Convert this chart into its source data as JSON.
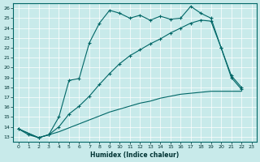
{
  "xlabel": "Humidex (Indice chaleur)",
  "bg_color": "#c8eaea",
  "line_color": "#006666",
  "grid_color": "#b0d4d4",
  "xlim": [
    -0.5,
    23.5
  ],
  "ylim": [
    12.5,
    26.5
  ],
  "xticks": [
    0,
    1,
    2,
    3,
    4,
    5,
    6,
    7,
    8,
    9,
    10,
    11,
    12,
    13,
    14,
    15,
    16,
    17,
    18,
    19,
    20,
    21,
    22,
    23
  ],
  "yticks": [
    13,
    14,
    15,
    16,
    17,
    18,
    19,
    20,
    21,
    22,
    23,
    24,
    25,
    26
  ],
  "line1_x": [
    0,
    1,
    2,
    3,
    4,
    5,
    6,
    7,
    8,
    9,
    10,
    11,
    12,
    13,
    14,
    15,
    16,
    17,
    18,
    19,
    20,
    21,
    22
  ],
  "line1_y": [
    13.8,
    13.2,
    12.9,
    13.2,
    15.0,
    18.7,
    18.9,
    22.5,
    24.5,
    25.8,
    25.5,
    25.0,
    25.3,
    24.8,
    25.2,
    24.9,
    25.0,
    26.2,
    25.5,
    25.0,
    22.0,
    19.0,
    17.8
  ],
  "line2_x": [
    0,
    2,
    3,
    4,
    5,
    6,
    7,
    8,
    9,
    10,
    11,
    12,
    13,
    14,
    15,
    16,
    17,
    18,
    19,
    20,
    21,
    22
  ],
  "line2_y": [
    13.8,
    12.9,
    13.2,
    14.0,
    15.3,
    16.1,
    17.1,
    18.3,
    19.4,
    20.4,
    21.2,
    21.8,
    22.4,
    22.9,
    23.5,
    24.0,
    24.5,
    24.8,
    24.7,
    22.0,
    19.2,
    18.0
  ],
  "line3_x": [
    0,
    2,
    3,
    4,
    5,
    6,
    7,
    8,
    9,
    10,
    11,
    12,
    13,
    14,
    15,
    16,
    17,
    18,
    19,
    20,
    21,
    22
  ],
  "line3_y": [
    13.8,
    12.9,
    13.2,
    13.5,
    13.9,
    14.3,
    14.7,
    15.1,
    15.5,
    15.8,
    16.1,
    16.4,
    16.6,
    16.9,
    17.1,
    17.3,
    17.4,
    17.5,
    17.6,
    17.6,
    17.6,
    17.6
  ]
}
